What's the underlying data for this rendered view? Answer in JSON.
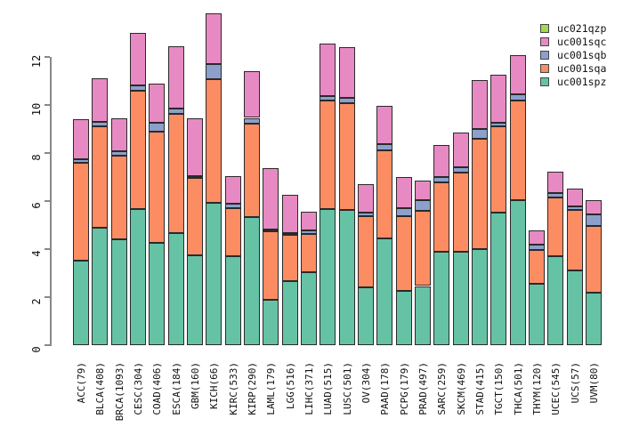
{
  "chart_data": {
    "type": "bar",
    "stacked": true,
    "title": "",
    "xlabel": "",
    "ylabel": "",
    "grid": false,
    "yticks": [
      0,
      2,
      4,
      6,
      8,
      10,
      12
    ],
    "ylim": [
      0,
      13.9
    ],
    "categories": [
      "ACC(79)",
      "BLCA(408)",
      "BRCA(1093)",
      "CESC(304)",
      "COAD(406)",
      "ESCA(184)",
      "GBM(160)",
      "KICH(66)",
      "KIRC(533)",
      "KIRP(290)",
      "LAML(179)",
      "LGG(516)",
      "LIHC(371)",
      "LUAD(515)",
      "LUSC(501)",
      "OV(304)",
      "PAAD(178)",
      "PCPG(179)",
      "PRAD(497)",
      "SARC(259)",
      "SKCM(469)",
      "STAD(415)",
      "TGCT(150)",
      "THCA(501)",
      "THYM(120)",
      "UCEC(545)",
      "UCS(57)",
      "UVM(80)"
    ],
    "series": [
      {
        "name": "uc001spz",
        "color": "#66C2A5",
        "values": [
          3.51,
          4.9,
          4.4,
          5.67,
          4.25,
          4.66,
          3.75,
          5.91,
          3.7,
          5.32,
          1.88,
          2.66,
          3.03,
          5.67,
          5.63,
          2.41,
          4.46,
          2.27,
          2.46,
          3.88,
          3.9,
          4.0,
          5.51,
          6.04,
          2.54,
          3.69,
          3.11,
          2.17
        ]
      },
      {
        "name": "uc001sqa",
        "color": "#FC8D62",
        "values": [
          4.07,
          4.2,
          3.5,
          4.93,
          4.65,
          4.96,
          3.22,
          5.16,
          2.0,
          3.89,
          2.87,
          1.93,
          1.61,
          4.5,
          4.44,
          2.95,
          3.64,
          3.09,
          3.12,
          2.9,
          3.27,
          4.59,
          3.61,
          4.13,
          1.42,
          2.46,
          2.52,
          2.78
        ]
      },
      {
        "name": "uc001sqb",
        "color": "#8DA0CB",
        "values": [
          0.15,
          0.18,
          0.19,
          0.23,
          0.37,
          0.24,
          0.06,
          0.64,
          0.18,
          0.25,
          0.05,
          0.09,
          0.13,
          0.19,
          0.23,
          0.15,
          0.28,
          0.34,
          0.46,
          0.21,
          0.25,
          0.41,
          0.15,
          0.27,
          0.23,
          0.19,
          0.16,
          0.49
        ]
      },
      {
        "name": "uc001sqc",
        "color": "#E78AC3",
        "values": [
          1.68,
          1.84,
          1.37,
          2.17,
          1.62,
          2.6,
          2.43,
          2.1,
          1.17,
          1.95,
          2.56,
          1.57,
          0.8,
          2.18,
          2.1,
          1.2,
          1.57,
          1.29,
          0.8,
          1.35,
          1.42,
          2.04,
          1.99,
          1.65,
          0.58,
          0.89,
          0.74,
          0.6
        ]
      },
      {
        "name": "uc021qzp",
        "color": "#A6D854",
        "values": [
          0,
          0,
          0,
          0,
          0,
          0,
          0,
          0,
          0,
          0,
          0,
          0,
          0,
          0,
          0,
          0,
          0,
          0,
          0,
          0,
          0,
          0,
          0,
          0,
          0,
          0,
          0,
          0
        ]
      }
    ],
    "legend": {
      "position": "top-right",
      "entries_top_to_bottom": [
        "uc021qzp",
        "uc001sqc",
        "uc001sqb",
        "uc001sqa",
        "uc001spz"
      ]
    }
  }
}
